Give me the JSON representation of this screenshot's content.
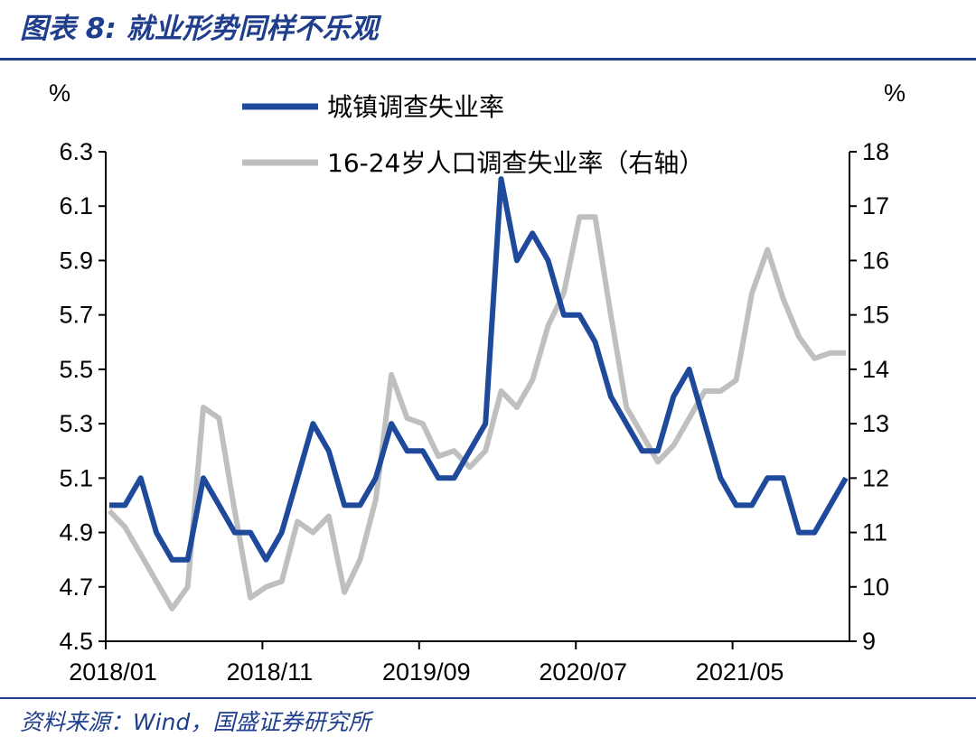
{
  "figure": {
    "title": "图表 8:  就业形势同样不乐观",
    "source": "资料来源：Wind，国盛证券研究所"
  },
  "chart_data": {
    "type": "line",
    "x_tick_labels": [
      "2018/01",
      "2018/11",
      "2019/09",
      "2020/07",
      "2021/05"
    ],
    "x_tick_index": [
      0,
      10,
      20,
      30,
      40
    ],
    "y_left": {
      "unit": "%",
      "range": [
        4.5,
        6.3
      ],
      "ticks": [
        "4.5",
        "4.7",
        "4.9",
        "5.1",
        "5.3",
        "5.5",
        "5.7",
        "5.9",
        "6.1",
        "6.3"
      ]
    },
    "y_right": {
      "unit": "%",
      "range": [
        9,
        18
      ],
      "ticks": [
        "9",
        "10",
        "11",
        "12",
        "13",
        "14",
        "15",
        "16",
        "17",
        "18"
      ]
    },
    "grid": false,
    "legend_position": "top",
    "series": [
      {
        "name": "城镇调查失业率",
        "axis": "left",
        "color": "#1F4A9C",
        "values": [
          5.0,
          5.0,
          5.1,
          4.9,
          4.8,
          4.8,
          5.1,
          5.0,
          4.9,
          4.9,
          4.8,
          4.9,
          5.1,
          5.3,
          5.2,
          5.0,
          5.0,
          5.1,
          5.3,
          5.2,
          5.2,
          5.1,
          5.1,
          5.2,
          5.3,
          6.2,
          5.9,
          6.0,
          5.9,
          5.7,
          5.7,
          5.6,
          5.4,
          5.3,
          5.2,
          5.2,
          5.4,
          5.5,
          5.3,
          5.1,
          5.0,
          5.0,
          5.1,
          5.1,
          4.9,
          4.9,
          5.0,
          5.1
        ]
      },
      {
        "name": "16-24岁人口调查失业率（右轴）",
        "axis": "right",
        "color": "#BFBFBF",
        "values": [
          11.4,
          11.1,
          10.6,
          10.1,
          9.6,
          10.0,
          13.3,
          13.1,
          11.4,
          9.8,
          10.0,
          10.1,
          11.2,
          11.0,
          11.3,
          9.9,
          10.5,
          11.6,
          13.9,
          13.1,
          13.0,
          12.4,
          12.5,
          12.2,
          12.5,
          13.6,
          13.3,
          13.8,
          14.8,
          15.4,
          16.8,
          16.8,
          15.0,
          13.3,
          12.8,
          12.3,
          12.6,
          13.1,
          13.6,
          13.6,
          13.8,
          15.4,
          16.2,
          15.3,
          14.6,
          14.2,
          14.3,
          14.3
        ]
      }
    ]
  }
}
